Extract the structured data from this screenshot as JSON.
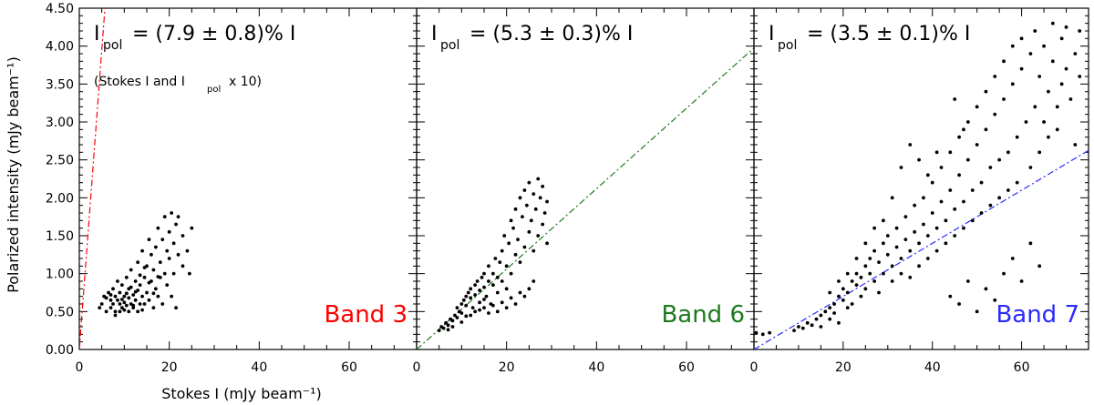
{
  "figure": {
    "ylabel": "Polarized intensity (mJy beam⁻¹)",
    "xlabel": "Stokes I (mJy beam⁻¹)"
  },
  "chart_data": [
    {
      "type": "scatter",
      "panel": "Band 3",
      "band_label": "Band 3",
      "band_color": "#ff0000",
      "fit_label_main": "I",
      "fit_label_sub": "pol",
      "fit_label_rest": "= (7.9 ± 0.8)% I",
      "note_prefix": "(Stokes I and I",
      "note_sub": "pol",
      "note_suffix": "x 10)",
      "fit_slope": 0.079,
      "fit_scale": 10,
      "xlim": [
        0,
        75
      ],
      "ylim": [
        0,
        4.5
      ],
      "xticks": [
        0,
        20,
        40,
        60
      ],
      "yticks": [
        0.0,
        0.5,
        1.0,
        1.5,
        2.0,
        2.5,
        3.0,
        3.5,
        4.0,
        4.5
      ],
      "ytick_labels": [
        "0.00",
        "0.50",
        "1.00",
        "1.50",
        "2.00",
        "2.50",
        "3.00",
        "3.50",
        "4.00",
        "4.50"
      ],
      "points": [
        [
          4.5,
          0.55
        ],
        [
          5,
          0.6
        ],
        [
          5.5,
          0.7
        ],
        [
          6,
          0.5
        ],
        [
          6.5,
          0.75
        ],
        [
          7,
          0.65
        ],
        [
          7,
          0.55
        ],
        [
          7.5,
          0.8
        ],
        [
          7.5,
          0.6
        ],
        [
          8,
          0.7
        ],
        [
          8,
          0.5
        ],
        [
          8.5,
          0.9
        ],
        [
          8.5,
          0.65
        ],
        [
          9,
          0.6
        ],
        [
          9,
          0.75
        ],
        [
          9.5,
          0.55
        ],
        [
          9.5,
          0.85
        ],
        [
          10,
          0.7
        ],
        [
          10,
          0.62
        ],
        [
          10.5,
          0.95
        ],
        [
          10.5,
          0.58
        ],
        [
          11,
          0.8
        ],
        [
          11,
          0.68
        ],
        [
          11.5,
          0.6
        ],
        [
          11.5,
          1.05
        ],
        [
          12,
          0.72
        ],
        [
          12,
          0.55
        ],
        [
          12.5,
          0.9
        ],
        [
          12.5,
          0.65
        ],
        [
          13,
          0.78
        ],
        [
          13,
          1.15
        ],
        [
          13.5,
          0.6
        ],
        [
          13.5,
          0.85
        ],
        [
          14,
          0.7
        ],
        [
          14,
          1.3
        ],
        [
          14.5,
          0.95
        ],
        [
          14.5,
          0.6
        ],
        [
          15,
          1.1
        ],
        [
          15,
          0.75
        ],
        [
          15.5,
          1.45
        ],
        [
          15.5,
          0.65
        ],
        [
          16,
          0.9
        ],
        [
          16,
          1.25
        ],
        [
          16.5,
          0.55
        ],
        [
          16.5,
          1.05
        ],
        [
          17,
          1.35
        ],
        [
          17,
          0.8
        ],
        [
          17.5,
          1.6
        ],
        [
          17.5,
          0.7
        ],
        [
          18,
          1.15
        ],
        [
          18,
          0.95
        ],
        [
          18.5,
          1.45
        ],
        [
          18.5,
          0.6
        ],
        [
          19,
          1.75
        ],
        [
          19,
          1.0
        ],
        [
          19.5,
          1.3
        ],
        [
          19.5,
          0.85
        ],
        [
          20,
          1.55
        ],
        [
          20,
          1.2
        ],
        [
          20.5,
          1.8
        ],
        [
          20.5,
          0.7
        ],
        [
          21,
          1.4
        ],
        [
          21,
          1.0
        ],
        [
          21.5,
          1.65
        ],
        [
          21.5,
          0.55
        ],
        [
          22,
          1.25
        ],
        [
          22,
          1.75
        ],
        [
          23,
          1.1
        ],
        [
          23,
          1.5
        ],
        [
          24,
          1.3
        ],
        [
          24.5,
          1.0
        ],
        [
          25,
          1.6
        ],
        [
          9,
          0.5
        ],
        [
          10,
          0.52
        ],
        [
          11,
          0.5
        ],
        [
          12,
          0.58
        ],
        [
          8,
          0.45
        ],
        [
          13,
          0.5
        ],
        [
          14,
          0.52
        ],
        [
          6,
          0.68
        ],
        [
          7,
          0.72
        ],
        [
          9.5,
          0.66
        ],
        [
          10.5,
          0.74
        ],
        [
          11.5,
          0.82
        ],
        [
          12.5,
          0.76
        ],
        [
          13.5,
          0.98
        ],
        [
          14.5,
          1.08
        ],
        [
          15.5,
          0.88
        ],
        [
          16.5,
          0.74
        ],
        [
          17.5,
          0.96
        ]
      ]
    },
    {
      "type": "scatter",
      "panel": "Band 6",
      "band_label": "Band 6",
      "band_color": "#1e7a1e",
      "fit_label_main": "I",
      "fit_label_sub": "pol",
      "fit_label_rest": "= (5.3 ± 0.3)% I",
      "fit_slope": 0.053,
      "fit_scale": 1,
      "xlim": [
        0,
        75
      ],
      "ylim": [
        0,
        4.5
      ],
      "xticks": [
        0,
        20,
        40,
        60
      ],
      "yticks": [],
      "ytick_labels": [],
      "points": [
        [
          5,
          0.25
        ],
        [
          5.5,
          0.3
        ],
        [
          6,
          0.28
        ],
        [
          6.5,
          0.35
        ],
        [
          7,
          0.32
        ],
        [
          7.5,
          0.4
        ],
        [
          8,
          0.38
        ],
        [
          8,
          0.3
        ],
        [
          8.5,
          0.45
        ],
        [
          9,
          0.42
        ],
        [
          9,
          0.55
        ],
        [
          9.5,
          0.5
        ],
        [
          10,
          0.48
        ],
        [
          10,
          0.6
        ],
        [
          10.5,
          0.65
        ],
        [
          11,
          0.58
        ],
        [
          11,
          0.7
        ],
        [
          11.5,
          0.75
        ],
        [
          12,
          0.68
        ],
        [
          12,
          0.8
        ],
        [
          12.5,
          0.55
        ],
        [
          13,
          0.85
        ],
        [
          13,
          0.72
        ],
        [
          13.5,
          0.9
        ],
        [
          14,
          0.78
        ],
        [
          14,
          0.62
        ],
        [
          14.5,
          0.95
        ],
        [
          15,
          0.82
        ],
        [
          15,
          1.0
        ],
        [
          15.5,
          0.7
        ],
        [
          16,
          0.9
        ],
        [
          16,
          1.1
        ],
        [
          16.5,
          0.6
        ],
        [
          17,
          1.0
        ],
        [
          17,
          0.85
        ],
        [
          17.5,
          1.2
        ],
        [
          18,
          0.95
        ],
        [
          18,
          0.75
        ],
        [
          18.5,
          1.15
        ],
        [
          19,
          0.9
        ],
        [
          19,
          1.3
        ],
        [
          19.5,
          1.5
        ],
        [
          20,
          1.1
        ],
        [
          20,
          0.8
        ],
        [
          20.5,
          1.4
        ],
        [
          21,
          1.7
        ],
        [
          21,
          1.0
        ],
        [
          21.5,
          1.6
        ],
        [
          22,
          1.85
        ],
        [
          22,
          1.25
        ],
        [
          22.5,
          1.45
        ],
        [
          23,
          2.0
        ],
        [
          23,
          1.15
        ],
        [
          23.5,
          1.75
        ],
        [
          24,
          2.1
        ],
        [
          24,
          1.35
        ],
        [
          24.5,
          1.9
        ],
        [
          25,
          2.2
        ],
        [
          25,
          1.55
        ],
        [
          25.5,
          1.7
        ],
        [
          26,
          2.05
        ],
        [
          26,
          1.3
        ],
        [
          26.5,
          1.85
        ],
        [
          27,
          2.25
        ],
        [
          27,
          1.5
        ],
        [
          27.5,
          2.0
        ],
        [
          28,
          1.65
        ],
        [
          28,
          2.15
        ],
        [
          28.5,
          1.8
        ],
        [
          29,
          1.95
        ],
        [
          29,
          1.4
        ],
        [
          12,
          0.45
        ],
        [
          13,
          0.5
        ],
        [
          14,
          0.52
        ],
        [
          15,
          0.55
        ],
        [
          16,
          0.48
        ],
        [
          17,
          0.58
        ],
        [
          18,
          0.5
        ],
        [
          19,
          0.62
        ],
        [
          20,
          0.55
        ],
        [
          21,
          0.68
        ],
        [
          22,
          0.6
        ],
        [
          23,
          0.75
        ],
        [
          24,
          0.7
        ],
        [
          25,
          0.8
        ],
        [
          26,
          0.9
        ],
        [
          7,
          0.26
        ],
        [
          10,
          0.36
        ],
        [
          11,
          0.44
        ],
        [
          15,
          0.66
        ]
      ]
    },
    {
      "type": "scatter",
      "panel": "Band 7",
      "band_label": "Band 7",
      "band_color": "#2a2aff",
      "fit_label_main": "I",
      "fit_label_sub": "pol",
      "fit_label_rest": "= (3.5 ± 0.1)% I",
      "fit_slope": 0.035,
      "fit_scale": 1,
      "xlim": [
        0,
        75
      ],
      "ylim": [
        0,
        4.5
      ],
      "xticks": [
        0,
        20,
        40,
        60
      ],
      "yticks": [],
      "ytick_labels": [],
      "points": [
        [
          0.5,
          0.22
        ],
        [
          2,
          0.2
        ],
        [
          3.5,
          0.22
        ],
        [
          9,
          0.25
        ],
        [
          10,
          0.3
        ],
        [
          11,
          0.28
        ],
        [
          12,
          0.35
        ],
        [
          13,
          0.32
        ],
        [
          14,
          0.4
        ],
        [
          15,
          0.45
        ],
        [
          15,
          0.3
        ],
        [
          16,
          0.5
        ],
        [
          17,
          0.55
        ],
        [
          17,
          0.4
        ],
        [
          18,
          0.6
        ],
        [
          18,
          0.48
        ],
        [
          19,
          0.7
        ],
        [
          19,
          0.35
        ],
        [
          20,
          0.65
        ],
        [
          20,
          0.8
        ],
        [
          21,
          0.75
        ],
        [
          21,
          0.55
        ],
        [
          22,
          0.9
        ],
        [
          22,
          0.6
        ],
        [
          23,
          0.85
        ],
        [
          23,
          1.0
        ],
        [
          24,
          0.95
        ],
        [
          24,
          0.7
        ],
        [
          25,
          1.1
        ],
        [
          25,
          0.8
        ],
        [
          26,
          1.0
        ],
        [
          26,
          1.2
        ],
        [
          27,
          0.9
        ],
        [
          27,
          1.3
        ],
        [
          28,
          1.15
        ],
        [
          28,
          0.75
        ],
        [
          29,
          1.4
        ],
        [
          29,
          1.0
        ],
        [
          30,
          1.25
        ],
        [
          30,
          1.5
        ],
        [
          31,
          1.1
        ],
        [
          31,
          0.9
        ],
        [
          32,
          1.35
        ],
        [
          32,
          1.6
        ],
        [
          33,
          1.2
        ],
        [
          33,
          1.0
        ],
        [
          34,
          1.45
        ],
        [
          34,
          1.75
        ],
        [
          35,
          1.3
        ],
        [
          35,
          0.95
        ],
        [
          36,
          1.55
        ],
        [
          36,
          1.9
        ],
        [
          37,
          1.4
        ],
        [
          37,
          1.1
        ],
        [
          38,
          1.65
        ],
        [
          38,
          2.0
        ],
        [
          39,
          1.5
        ],
        [
          39,
          1.2
        ],
        [
          40,
          1.8
        ],
        [
          40,
          2.2
        ],
        [
          41,
          1.6
        ],
        [
          41,
          1.3
        ],
        [
          42,
          1.95
        ],
        [
          42,
          2.4
        ],
        [
          43,
          1.7
        ],
        [
          43,
          1.4
        ],
        [
          44,
          2.1
        ],
        [
          44,
          2.6
        ],
        [
          45,
          1.85
        ],
        [
          45,
          1.5
        ],
        [
          46,
          2.3
        ],
        [
          46,
          2.8
        ],
        [
          47,
          1.95
        ],
        [
          47,
          1.6
        ],
        [
          48,
          2.5
        ],
        [
          48,
          3.0
        ],
        [
          49,
          2.1
        ],
        [
          49,
          1.7
        ],
        [
          50,
          2.7
        ],
        [
          50,
          3.2
        ],
        [
          51,
          2.2
        ],
        [
          51,
          1.8
        ],
        [
          52,
          2.9
        ],
        [
          52,
          3.4
        ],
        [
          53,
          2.4
        ],
        [
          53,
          1.9
        ],
        [
          54,
          3.1
        ],
        [
          54,
          3.6
        ],
        [
          55,
          2.5
        ],
        [
          55,
          2.0
        ],
        [
          56,
          3.3
        ],
        [
          56,
          3.8
        ],
        [
          57,
          2.6
        ],
        [
          57,
          2.1
        ],
        [
          58,
          3.5
        ],
        [
          58,
          4.0
        ],
        [
          59,
          2.8
        ],
        [
          59,
          2.2
        ],
        [
          60,
          3.7
        ],
        [
          60,
          4.1
        ],
        [
          61,
          3.0
        ],
        [
          62,
          3.9
        ],
        [
          62,
          2.4
        ],
        [
          63,
          4.2
        ],
        [
          63,
          3.2
        ],
        [
          64,
          3.6
        ],
        [
          64,
          2.6
        ],
        [
          65,
          4.0
        ],
        [
          65,
          3.0
        ],
        [
          66,
          3.4
        ],
        [
          66,
          2.8
        ],
        [
          67,
          3.8
        ],
        [
          67,
          4.3
        ],
        [
          68,
          3.2
        ],
        [
          68,
          2.9
        ],
        [
          69,
          4.1
        ],
        [
          69,
          3.5
        ],
        [
          70,
          3.7
        ],
        [
          70,
          4.25
        ],
        [
          71,
          3.3
        ],
        [
          72,
          3.9
        ],
        [
          72,
          2.7
        ],
        [
          73,
          3.6
        ],
        [
          73,
          4.2
        ],
        [
          44,
          0.7
        ],
        [
          46,
          0.6
        ],
        [
          48,
          0.9
        ],
        [
          50,
          0.5
        ],
        [
          52,
          0.8
        ],
        [
          54,
          0.65
        ],
        [
          56,
          1.0
        ],
        [
          58,
          1.2
        ],
        [
          60,
          0.9
        ],
        [
          62,
          1.4
        ],
        [
          64,
          1.1
        ],
        [
          45,
          3.3
        ],
        [
          47,
          2.9
        ],
        [
          41,
          2.6
        ],
        [
          39,
          2.3
        ],
        [
          37,
          2.5
        ],
        [
          35,
          2.7
        ],
        [
          33,
          2.4
        ],
        [
          31,
          2.0
        ],
        [
          29,
          1.7
        ],
        [
          27,
          1.6
        ],
        [
          25,
          1.4
        ],
        [
          23,
          1.2
        ],
        [
          21,
          1.0
        ],
        [
          19,
          0.9
        ],
        [
          17,
          0.75
        ]
      ]
    }
  ]
}
